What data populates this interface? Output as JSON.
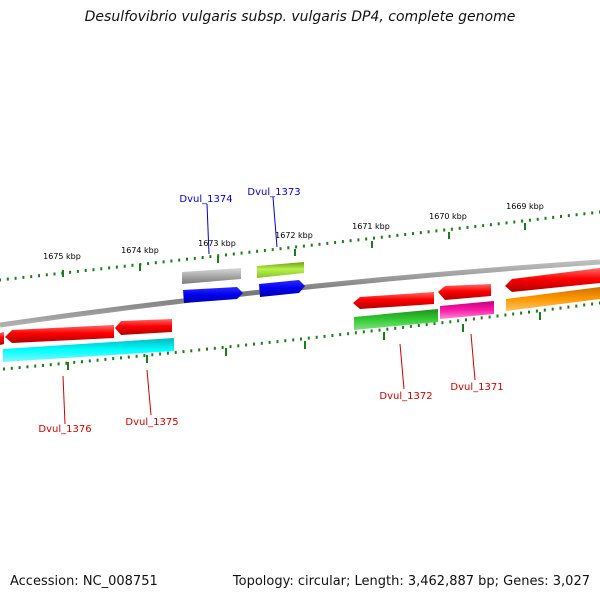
{
  "header": {
    "title": "Desulfovibrio vulgaris subsp. vulgaris DP4, complete genome"
  },
  "footer": {
    "accession": "Accession: NC_008751",
    "stats": "Topology: circular; Length: 3,462,887 bp; Genes: 3,027"
  },
  "colors": {
    "backbone": "#8a8a8a",
    "tick": "#1f7a1f",
    "forward_label": "#0000cc",
    "reverse_label": "#cc0000"
  },
  "ticks": [
    {
      "label": "1675 kbp"
    },
    {
      "label": "1674 kbp"
    },
    {
      "label": "1673 kbp"
    },
    {
      "label": "1672 kbp"
    },
    {
      "label": "1671 kbp"
    },
    {
      "label": "1670 kbp"
    },
    {
      "label": "1669 kbp"
    }
  ],
  "genes": {
    "forward": [
      {
        "name": "Dvul_1374"
      },
      {
        "name": "Dvul_1373"
      }
    ],
    "reverse": [
      {
        "name": "Dvul_1376"
      },
      {
        "name": "Dvul_1375"
      },
      {
        "name": "Dvul_1372"
      },
      {
        "name": "Dvul_1371"
      }
    ]
  }
}
